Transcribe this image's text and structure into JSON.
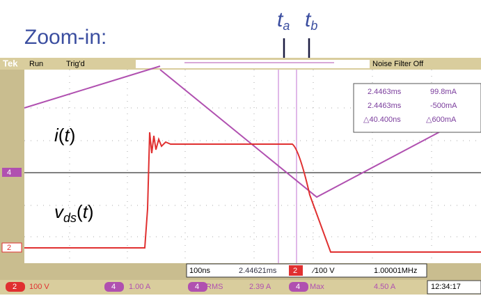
{
  "slide": {
    "title": "Zoom-in:",
    "cursor_a": {
      "base": "t",
      "sub": "a"
    },
    "cursor_b": {
      "base": "t",
      "sub": "b"
    },
    "current_label": {
      "name": "i",
      "open": "(",
      "arg": "t",
      "close": ")"
    },
    "voltage_label": {
      "name": "v",
      "sub": "ds",
      "open": "(",
      "arg": "t",
      "close": ")"
    }
  },
  "scope": {
    "top_bar": {
      "brand": "Tek",
      "state": "Run",
      "trigger": "Trig'd",
      "filter": "Noise Filter Off"
    },
    "cursor_readout": {
      "rows": [
        [
          "2.4463ms",
          "99.8mA"
        ],
        [
          "2.4463ms",
          "-500mA"
        ],
        [
          "△40.400ns",
          "△600mA"
        ]
      ]
    },
    "markers": {
      "ch4": "4",
      "ch2": "2"
    },
    "timebase": {
      "scale": "100ns",
      "position": "2.44621ms",
      "trig_ch": "2",
      "trig_level": "∕100 V",
      "freq": "1.00001MHz"
    },
    "status": {
      "ch2": "2",
      "ch2_scale": "100 V",
      "ch4": "4",
      "ch4_scale": "1.00 A",
      "m1_ch": "4",
      "m1_name": "RMS",
      "m1_value": "2.39 A",
      "m2_ch": "4",
      "m2_name": "Max",
      "m2_value": "4.50 A",
      "time": "12:34:17"
    }
  }
}
